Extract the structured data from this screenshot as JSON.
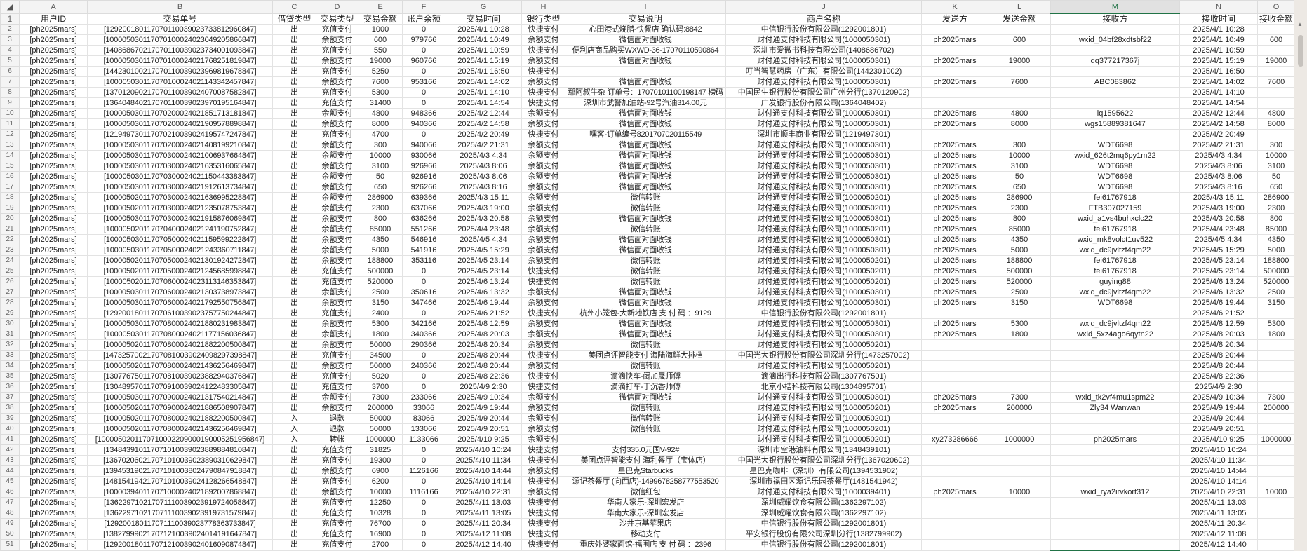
{
  "columns": [
    "A",
    "B",
    "C",
    "D",
    "E",
    "F",
    "G",
    "H",
    "I",
    "J",
    "K",
    "L",
    "M",
    "N",
    "O"
  ],
  "selected_column": "M",
  "selected_cell": "M51",
  "header": [
    "用户ID",
    "交易单号",
    "借贷类型",
    "交易类型",
    "交易金额",
    "账户余额",
    "交易时间",
    "银行类型",
    "交易说明",
    "商户名称",
    "发送方",
    "发送金额",
    "接收方",
    "接收时间",
    "接收金额"
  ],
  "rows": [
    [
      "[ph2025mars]",
      "[129200180117070110039023733812960847]",
      "出",
      "充值支付",
      "1000",
      "0",
      "2025/4/1 10:28",
      "快捷支付",
      "心田港式烧腊-快餐店 确认码:8842",
      "中信银行股份有限公司(1292001801)",
      "",
      "",
      "",
      "2025/4/1 10:28",
      ""
    ],
    [
      "[ph2025mars]",
      "[100005030117070100024023049205866847]",
      "出",
      "余额支付",
      "600",
      "979766",
      "2025/4/1 10:49",
      "余额支付",
      "微信面对面收钱",
      "财付通支付科技有限公司(1000050301)",
      "ph2025mars",
      "600",
      "wxid_04bf28xdtsbf22",
      "2025/4/1 10:49",
      "600"
    ],
    [
      "[ph2025mars]",
      "[140868670217070110039023734001093847]",
      "出",
      "充值支付",
      "550",
      "0",
      "2025/4/1 10:59",
      "快捷支付",
      "便利店商品购买WXWD-36-17070110590864",
      "深圳市爱微书科技有限公司(1408686702)",
      "",
      "",
      "",
      "2025/4/1 10:59",
      ""
    ],
    [
      "[ph2025mars]",
      "[100005030117070100024021768251819847]",
      "出",
      "余额支付",
      "19000",
      "960766",
      "2025/4/1 15:19",
      "余额支付",
      "微信面对面收钱",
      "财付通支付科技有限公司(1000050301)",
      "ph2025mars",
      "19000",
      "qq377217367j",
      "2025/4/1 15:19",
      "19000"
    ],
    [
      "[ph2025mars]",
      "[144230100217070110039023969819678847]",
      "出",
      "充值支付",
      "5250",
      "0",
      "2025/4/1 16:50",
      "快捷支付",
      "",
      "叮当智慧药房（广东）有限公司(1442301002)",
      "",
      "",
      "",
      "2025/4/1 16:50",
      ""
    ],
    [
      "[ph2025mars]",
      "[100005030117070100024021143342457847]",
      "出",
      "余额支付",
      "7600",
      "953166",
      "2025/4/1 14:02",
      "余额支付",
      "微信面对面收钱",
      "财付通支付科技有限公司(1000050301)",
      "ph2025mars",
      "7600",
      "ABC083862",
      "2025/4/1 14:02",
      "7600"
    ],
    [
      "[ph2025mars]",
      "[137012090217070110039024070087582847]",
      "出",
      "充值支付",
      "5300",
      "0",
      "2025/4/1 14:10",
      "快捷支付",
      "鄢阿叔牛杂 订单号：17070101100198147 榜码",
      "中国民生银行股份有限公司广州分行(1370120902)",
      "",
      "",
      "",
      "2025/4/1 14:10",
      ""
    ],
    [
      "[ph2025mars]",
      "[136404840217070110039023970195164847]",
      "出",
      "充值支付",
      "31400",
      "0",
      "2025/4/1 14:54",
      "快捷支付",
      "深圳市武警加油站-92号汽油314.00元",
      "广发银行股份有限公司(1364048402)",
      "",
      "",
      "",
      "2025/4/1 14:54",
      ""
    ],
    [
      "[ph2025mars]",
      "[100005030117070200024021851713181847]",
      "出",
      "余额支付",
      "4800",
      "948366",
      "2025/4/2 12:44",
      "余额支付",
      "微信面对面收钱",
      "财付通支付科技有限公司(1000050301)",
      "ph2025mars",
      "4800",
      "lq1595622",
      "2025/4/2 12:44",
      "4800"
    ],
    [
      "[ph2025mars]",
      "[100005030117070200024021909578898847]",
      "出",
      "余额支付",
      "8000",
      "940366",
      "2025/4/2 14:58",
      "余额支付",
      "微信面对面收钱",
      "财付通支付科技有限公司(1000050301)",
      "ph2025mars",
      "8000",
      "wgs15889381647",
      "2025/4/2 14:58",
      "8000"
    ],
    [
      "[ph2025mars]",
      "[121949730117070210039024195747247847]",
      "出",
      "充值支付",
      "4700",
      "0",
      "2025/4/2 20:49",
      "快捷支付",
      "嘿客-订单编号8201707020115549",
      "深圳市顺丰商业有限公司(1219497301)",
      "",
      "",
      "",
      "2025/4/2 20:49",
      ""
    ],
    [
      "[ph2025mars]",
      "[100005030117070200024021408199210847]",
      "出",
      "余额支付",
      "300",
      "940066",
      "2025/4/2 21:31",
      "余额支付",
      "微信面对面收钱",
      "财付通支付科技有限公司(1000050301)",
      "ph2025mars",
      "300",
      "WDT6698",
      "2025/4/2 21:31",
      "300"
    ],
    [
      "[ph2025mars]",
      "[100005030117070300024021006937664847]",
      "出",
      "余额支付",
      "10000",
      "930066",
      "2025/4/3 4:34",
      "余额支付",
      "微信面对面收钱",
      "财付通支付科技有限公司(1000050301)",
      "ph2025mars",
      "10000",
      "wxid_626t2mq6py1m22",
      "2025/4/3 4:34",
      "10000"
    ],
    [
      "[ph2025mars]",
      "[100005030117070300024021635316065847]",
      "出",
      "余额支付",
      "3100",
      "926966",
      "2025/4/3 8:06",
      "余额支付",
      "微信面对面收钱",
      "财付通支付科技有限公司(1000050301)",
      "ph2025mars",
      "3100",
      "WDT6698",
      "2025/4/3 8:06",
      "3100"
    ],
    [
      "[ph2025mars]",
      "[100005030117070300024021150443383847]",
      "出",
      "余额支付",
      "50",
      "926916",
      "2025/4/3 8:06",
      "余额支付",
      "微信面对面收钱",
      "财付通支付科技有限公司(1000050301)",
      "ph2025mars",
      "50",
      "WDT6698",
      "2025/4/3 8:06",
      "50"
    ],
    [
      "[ph2025mars]",
      "[100005030117070300024021912613734847]",
      "出",
      "余额支付",
      "650",
      "926266",
      "2025/4/3 8:16",
      "余额支付",
      "微信面对面收钱",
      "财付通支付科技有限公司(1000050301)",
      "ph2025mars",
      "650",
      "WDT6698",
      "2025/4/3 8:16",
      "650"
    ],
    [
      "[ph2025mars]",
      "[100005020117070300024021636995228847]",
      "出",
      "余额支付",
      "286900",
      "639366",
      "2025/4/3 15:11",
      "余额支付",
      "微信转账",
      "财付通支付科技有限公司(1000050201)",
      "ph2025mars",
      "286900",
      "fei61767918",
      "2025/4/3 15:11",
      "286900"
    ],
    [
      "[ph2025mars]",
      "[100005020117070300024021235078753847]",
      "出",
      "余额支付",
      "2300",
      "637066",
      "2025/4/3 19:00",
      "余额支付",
      "微信转账",
      "财付通支付科技有限公司(1000050201)",
      "ph2025mars",
      "2300",
      "FTB307027159",
      "2025/4/3 19:00",
      "2300"
    ],
    [
      "[ph2025mars]",
      "[100005030117070300024021915876069847]",
      "出",
      "余额支付",
      "800",
      "636266",
      "2025/4/3 20:58",
      "余额支付",
      "微信面对面收钱",
      "财付通支付科技有限公司(1000050301)",
      "ph2025mars",
      "800",
      "wxid_a1vs4buhxclc22",
      "2025/4/3 20:58",
      "800"
    ],
    [
      "[ph2025mars]",
      "[100005020117070400024021241190752847]",
      "出",
      "余额支付",
      "85000",
      "551266",
      "2025/4/4 23:48",
      "余额支付",
      "微信转账",
      "财付通支付科技有限公司(1000050201)",
      "ph2025mars",
      "85000",
      "fei61767918",
      "2025/4/4 23:48",
      "85000"
    ],
    [
      "[ph2025mars]",
      "[100005030117070500024021159599222847]",
      "出",
      "余额支付",
      "4350",
      "546916",
      "2025/4/5 4:34",
      "余额支付",
      "微信面对面收钱",
      "财付通支付科技有限公司(1000050301)",
      "ph2025mars",
      "4350",
      "wxid_mk8volct1uv522",
      "2025/4/5 4:34",
      "4350"
    ],
    [
      "[ph2025mars]",
      "[100005030117070500024021243360711847]",
      "出",
      "余额支付",
      "5000",
      "541916",
      "2025/4/5 15:29",
      "余额支付",
      "微信面对面收钱",
      "财付通支付科技有限公司(1000050301)",
      "ph2025mars",
      "5000",
      "wxid_dc9jvltzf4qm22",
      "2025/4/5 15:29",
      "5000"
    ],
    [
      "[ph2025mars]",
      "[100005020117070500024021301924272847]",
      "出",
      "余额支付",
      "188800",
      "353116",
      "2025/4/5 23:14",
      "余额支付",
      "微信转账",
      "财付通支付科技有限公司(1000050201)",
      "ph2025mars",
      "188800",
      "fei61767918",
      "2025/4/5 23:14",
      "188800"
    ],
    [
      "[ph2025mars]",
      "[100005020117070500024021245685998847]",
      "出",
      "充值支付",
      "500000",
      "0",
      "2025/4/5 23:14",
      "快捷支付",
      "微信转账",
      "财付通支付科技有限公司(1000050201)",
      "ph2025mars",
      "500000",
      "fei61767918",
      "2025/4/5 23:14",
      "500000"
    ],
    [
      "[ph2025mars]",
      "[100005020117070600024023113146353847]",
      "出",
      "充值支付",
      "520000",
      "0",
      "2025/4/6 13:24",
      "快捷支付",
      "微信转账",
      "财付通支付科技有限公司(1000050201)",
      "ph2025mars",
      "520000",
      "guying88",
      "2025/4/6 13:24",
      "520000"
    ],
    [
      "[ph2025mars]",
      "[100005030117070600024021303738973847]",
      "出",
      "余额支付",
      "2500",
      "350616",
      "2025/4/6 13:32",
      "余额支付",
      "微信面对面收钱",
      "财付通支付科技有限公司(1000050301)",
      "ph2025mars",
      "2500",
      "wxid_dc9jvltzf4qm22",
      "2025/4/6 13:32",
      "2500"
    ],
    [
      "[ph2025mars]",
      "[100005030117070600024021792550756847]",
      "出",
      "余额支付",
      "3150",
      "347466",
      "2025/4/6 19:44",
      "余额支付",
      "微信面对面收钱",
      "财付通支付科技有限公司(1000050301)",
      "ph2025mars",
      "3150",
      "WDT6698",
      "2025/4/6 19:44",
      "3150"
    ],
    [
      "[ph2025mars]",
      "[129200180117070610039023757750244847]",
      "出",
      "充值支付",
      "2400",
      "0",
      "2025/4/6 21:52",
      "快捷支付",
      "杭州小笼包-大新地铁店 支 付 码 ：9129",
      "中信银行股份有限公司(1292001801)",
      "",
      "",
      "",
      "2025/4/6 21:52",
      ""
    ],
    [
      "[ph2025mars]",
      "[100005030117070800024021880231983847]",
      "出",
      "余额支付",
      "5300",
      "342166",
      "2025/4/8 12:59",
      "余额支付",
      "微信面对面收钱",
      "财付通支付科技有限公司(1000050301)",
      "ph2025mars",
      "5300",
      "wxid_dc9jvltzf4qm22",
      "2025/4/8 12:59",
      "5300"
    ],
    [
      "[ph2025mars]",
      "[100005030117070800024021177156036847]",
      "出",
      "余额支付",
      "1800",
      "340366",
      "2025/4/8 20:03",
      "余额支付",
      "微信面对面收钱",
      "财付通支付科技有限公司(1000050301)",
      "ph2025mars",
      "1800",
      "wxid_5xz4ago6qytn22",
      "2025/4/8 20:03",
      "1800"
    ],
    [
      "[ph2025mars]",
      "[100005020117070800024021882200500847]",
      "出",
      "余额支付",
      "50000",
      "290366",
      "2025/4/8 20:34",
      "余额支付",
      "微信转账",
      "财付通支付科技有限公司(1000050201)",
      "",
      "",
      "",
      "2025/4/8 20:34",
      ""
    ],
    [
      "[ph2025mars]",
      "[147325700217070810039024098297398847]",
      "出",
      "充值支付",
      "34500",
      "0",
      "2025/4/8 20:44",
      "快捷支付",
      "美团点评智能支付 海陆海鲜大排档",
      "中国光大银行股份有限公司深圳分行(1473257002)",
      "",
      "",
      "",
      "2025/4/8 20:44",
      ""
    ],
    [
      "[ph2025mars]",
      "[100005020117070800024021436256469847]",
      "出",
      "余额支付",
      "50000",
      "240366",
      "2025/4/8 20:44",
      "余额支付",
      "微信转账",
      "财付通支付科技有限公司(1000050201)",
      "",
      "",
      "",
      "2025/4/8 20:44",
      ""
    ],
    [
      "[ph2025mars]",
      "[130776750117070810039023882940376847]",
      "出",
      "充值支付",
      "5020",
      "0",
      "2025/4/8 22:36",
      "快捷支付",
      "滴滴快车-阚加晟师傅",
      "滴滴出行科技有限公司(1307767501)",
      "",
      "",
      "",
      "2025/4/8 22:36",
      ""
    ],
    [
      "[ph2025mars]",
      "[130489570117070910039024122483305847]",
      "出",
      "充值支付",
      "3700",
      "0",
      "2025/4/9 2:30",
      "快捷支付",
      "滴滴打车-于沉香师傅",
      "北京小桔科技有限公司(1304895701)",
      "",
      "",
      "",
      "2025/4/9 2:30",
      ""
    ],
    [
      "[ph2025mars]",
      "[100005030117070900024021317540214847]",
      "出",
      "余额支付",
      "7300",
      "233066",
      "2025/4/9 10:34",
      "余额支付",
      "微信面对面收钱",
      "财付通支付科技有限公司(1000050301)",
      "ph2025mars",
      "7300",
      "wxid_tk2vf4mu1spm22",
      "2025/4/9 10:34",
      "7300"
    ],
    [
      "[ph2025mars]",
      "[100005020117070900024021886508907847]",
      "出",
      "余额支付",
      "200000",
      "33066",
      "2025/4/9 19:44",
      "余额支付",
      "微信转账",
      "财付通支付科技有限公司(1000050201)",
      "ph2025mars",
      "200000",
      "Zly34 Wanwan",
      "2025/4/9 19:44",
      "200000"
    ],
    [
      "[ph2025mars]",
      "[100005020117070800024021882200500847]",
      "入",
      "退款",
      "50000",
      "83066",
      "2025/4/9 20:44",
      "余额支付",
      "微信转账",
      "财付通支付科技有限公司(1000050201)",
      "",
      "",
      "",
      "2025/4/9 20:44",
      ""
    ],
    [
      "[ph2025mars]",
      "[100005020117070800024021436256469847]",
      "入",
      "退款",
      "50000",
      "133066",
      "2025/4/9 20:51",
      "余额支付",
      "微信转账",
      "财付通支付科技有限公司(1000050201)",
      "",
      "",
      "",
      "2025/4/9 20:51",
      ""
    ],
    [
      "[ph2025mars]",
      "[1000050201170710002209000190005251956847]",
      "入",
      "转帐",
      "1000000",
      "1133066",
      "2025/4/10 9:25",
      "余额支付",
      "",
      "财付通支付科技有限公司(1000050201)",
      "xy273286666",
      "1000000",
      "ph2025mars",
      "2025/4/10 9:25",
      "1000000"
    ],
    [
      "[ph2025mars]",
      "[134843910117071010039023889884810847]",
      "出",
      "充值支付",
      "31825",
      "0",
      "2025/4/10 10:24",
      "快捷支付",
      "支付335.0元国V-92#",
      "深圳市空港油料有限公司(1348439101)",
      "",
      "",
      "",
      "2025/4/10 10:24",
      ""
    ],
    [
      "[ph2025mars]",
      "[136702060217071010039023890310629847]",
      "出",
      "充值支付",
      "19300",
      "0",
      "2025/4/10 11:34",
      "快捷支付",
      "美团点评智能支付 海利餐厅（宝体店）",
      "中国光大银行股份有限公司深圳分行(1367020602)",
      "",
      "",
      "",
      "2025/4/10 11:34",
      ""
    ],
    [
      "[ph2025mars]",
      "[139453190217071010038024790847918847]",
      "出",
      "余额支付",
      "6900",
      "1126166",
      "2025/4/10 14:44",
      "余额支付",
      "星巴克Starbucks",
      "星巴克咖啡（深圳）有限公司(1394531902)",
      "",
      "",
      "",
      "2025/4/10 14:44",
      ""
    ],
    [
      "[ph2025mars]",
      "[148154194217071010039024128266548847]",
      "出",
      "充值支付",
      "6200",
      "0",
      "2025/4/10 14:14",
      "快捷支付",
      "源记茶餐厅 (向西店)-1499678258777553520",
      "深圳市福田区源记乐园茶餐厅(1481541942)",
      "",
      "",
      "",
      "2025/4/10 14:14",
      ""
    ],
    [
      "[ph2025mars]",
      "[100003940117071000024021892007868847]",
      "出",
      "余额支付",
      "10000",
      "1116166",
      "2025/4/10 22:31",
      "余额支付",
      "微信红包",
      "财付通支付科技有限公司(1000039401)",
      "ph2025mars",
      "10000",
      "wxid_rya2irvkort312",
      "2025/4/10 22:31",
      "10000"
    ],
    [
      "[ph2025mars]",
      "[136229710217071110039023919724058847]",
      "出",
      "充值支付",
      "12250",
      "0",
      "2025/4/11 13:03",
      "快捷支付",
      "华南大家乐-深圳宏发店",
      "深圳威耀饮食有限公司(1362297102)",
      "",
      "",
      "",
      "2025/4/11 13:03",
      ""
    ],
    [
      "[ph2025mars]",
      "[136229710217071110039023919731579847]",
      "出",
      "充值支付",
      "10328",
      "0",
      "2025/4/11 13:05",
      "快捷支付",
      "华南大家乐-深圳宏发店",
      "深圳威耀饮食有限公司(1362297102)",
      "",
      "",
      "",
      "2025/4/11 13:05",
      ""
    ],
    [
      "[ph2025mars]",
      "[129200180117071110039023778363733847]",
      "出",
      "充值支付",
      "76700",
      "0",
      "2025/4/11 20:34",
      "快捷支付",
      "沙井京基苹果店",
      "中信银行股份有限公司(1292001801)",
      "",
      "",
      "",
      "2025/4/11 20:34",
      ""
    ],
    [
      "[ph2025mars]",
      "[138279990217071210039024014191647847]",
      "出",
      "充值支付",
      "16900",
      "0",
      "2025/4/12 11:08",
      "快捷支付",
      "移动支付",
      "平安银行股份有限公司深圳分行(1382799902)",
      "",
      "",
      "",
      "2025/4/12 11:08",
      ""
    ],
    [
      "[ph2025mars]",
      "[129200180117071210039024016090874847]",
      "出",
      "充值支付",
      "2700",
      "0",
      "2025/4/12 14:40",
      "快捷支付",
      "重庆外婆家面馆-福围店 支 付 码 ：2396",
      "中信银行股份有限公司(1292001801)",
      "",
      "",
      "",
      "2025/4/12 14:40",
      ""
    ]
  ],
  "colors": {
    "accent": "#217346",
    "header_bg": "#f4f4f4",
    "grid": "#e3e3e3"
  }
}
